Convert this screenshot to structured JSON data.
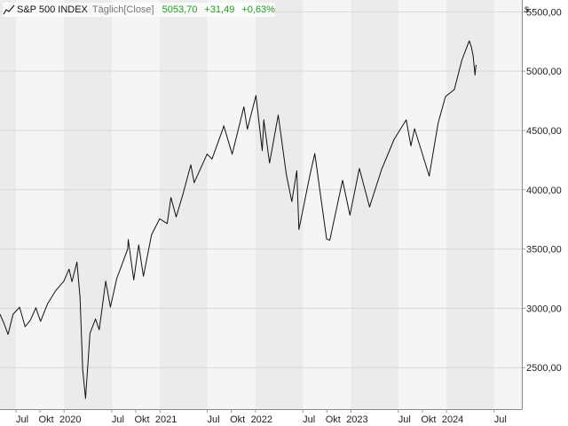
{
  "legend": {
    "name": "S&P 500 INDEX",
    "frequency": "Täglich",
    "mode": "[Close]",
    "last": "5053,70",
    "change": "+31,49",
    "change_pct": "+0,63%",
    "change_color": "#1e9e1e"
  },
  "currency": "$",
  "colors": {
    "line": "#111111",
    "band_dark": "#ebebeb",
    "band_light": "#f5f5f5",
    "grid": "#d8d8d8",
    "axis_text": "#222222"
  },
  "chart_data": {
    "type": "line",
    "title": "S&P 500 INDEX",
    "ylabel": "$",
    "xlim": [
      "2019-05-01",
      "2024-10-15"
    ],
    "ylim": [
      2150,
      5600
    ],
    "y_ticks": [
      2500,
      3000,
      3500,
      4000,
      4500,
      5000,
      5500
    ],
    "y_tick_labels": [
      "2500,00",
      "3000,00",
      "3500,00",
      "4000,00",
      "4500,00",
      "5000,00",
      "5500,00"
    ],
    "x_ticks": [
      {
        "date": "2019-07-01",
        "label": "Jul"
      },
      {
        "date": "2019-10-01",
        "label": "Okt"
      },
      {
        "date": "2020-01-01",
        "label": "2020"
      },
      {
        "date": "2020-07-01",
        "label": "Jul"
      },
      {
        "date": "2020-10-01",
        "label": "Okt"
      },
      {
        "date": "2021-01-01",
        "label": "2021"
      },
      {
        "date": "2021-07-01",
        "label": "Jul"
      },
      {
        "date": "2021-10-01",
        "label": "Okt"
      },
      {
        "date": "2022-01-01",
        "label": "2022"
      },
      {
        "date": "2022-07-01",
        "label": "Jul"
      },
      {
        "date": "2022-10-01",
        "label": "Okt"
      },
      {
        "date": "2023-01-01",
        "label": "2023"
      },
      {
        "date": "2023-07-01",
        "label": "Jul"
      },
      {
        "date": "2023-10-01",
        "label": "Okt"
      },
      {
        "date": "2024-01-01",
        "label": "2024"
      },
      {
        "date": "2024-07-01",
        "label": "Jul"
      }
    ],
    "grid": true,
    "series": [
      {
        "points": [
          [
            "2019-05-01",
            2950
          ],
          [
            "2019-05-15",
            2880
          ],
          [
            "2019-06-01",
            2780
          ],
          [
            "2019-06-20",
            2950
          ],
          [
            "2019-07-15",
            3010
          ],
          [
            "2019-08-05",
            2845
          ],
          [
            "2019-08-25",
            2900
          ],
          [
            "2019-09-15",
            3005
          ],
          [
            "2019-10-03",
            2890
          ],
          [
            "2019-10-30",
            3040
          ],
          [
            "2019-11-30",
            3150
          ],
          [
            "2019-12-31",
            3230
          ],
          [
            "2020-01-20",
            3330
          ],
          [
            "2020-01-31",
            3225
          ],
          [
            "2020-02-19",
            3390
          ],
          [
            "2020-03-02",
            3090
          ],
          [
            "2020-03-12",
            2480
          ],
          [
            "2020-03-23",
            2240
          ],
          [
            "2020-04-09",
            2790
          ],
          [
            "2020-04-30",
            2910
          ],
          [
            "2020-05-14",
            2820
          ],
          [
            "2020-06-08",
            3230
          ],
          [
            "2020-06-26",
            3010
          ],
          [
            "2020-07-20",
            3250
          ],
          [
            "2020-08-31",
            3500
          ],
          [
            "2020-09-02",
            3580
          ],
          [
            "2020-09-23",
            3240
          ],
          [
            "2020-10-12",
            3535
          ],
          [
            "2020-10-30",
            3270
          ],
          [
            "2020-11-30",
            3620
          ],
          [
            "2020-12-31",
            3755
          ],
          [
            "2021-01-29",
            3715
          ],
          [
            "2021-02-12",
            3935
          ],
          [
            "2021-03-04",
            3770
          ],
          [
            "2021-03-31",
            3970
          ],
          [
            "2021-04-29",
            4210
          ],
          [
            "2021-05-12",
            4060
          ],
          [
            "2021-06-30",
            4300
          ],
          [
            "2021-07-19",
            4260
          ],
          [
            "2021-08-31",
            4520
          ],
          [
            "2021-09-02",
            4540
          ],
          [
            "2021-10-04",
            4300
          ],
          [
            "2021-11-18",
            4700
          ],
          [
            "2021-12-01",
            4510
          ],
          [
            "2022-01-03",
            4795
          ],
          [
            "2022-01-27",
            4330
          ],
          [
            "2022-02-02",
            4590
          ],
          [
            "2022-02-24",
            4225
          ],
          [
            "2022-03-29",
            4630
          ],
          [
            "2022-04-29",
            4130
          ],
          [
            "2022-05-20",
            3900
          ],
          [
            "2022-06-08",
            4160
          ],
          [
            "2022-06-16",
            3665
          ],
          [
            "2022-07-29",
            4130
          ],
          [
            "2022-08-16",
            4305
          ],
          [
            "2022-09-30",
            3585
          ],
          [
            "2022-10-12",
            3575
          ],
          [
            "2022-11-30",
            4080
          ],
          [
            "2022-12-28",
            3785
          ],
          [
            "2023-02-02",
            4180
          ],
          [
            "2023-03-13",
            3855
          ],
          [
            "2023-04-28",
            4170
          ],
          [
            "2023-06-15",
            4425
          ],
          [
            "2023-07-31",
            4590
          ],
          [
            "2023-08-18",
            4370
          ],
          [
            "2023-09-01",
            4515
          ],
          [
            "2023-10-27",
            4115
          ],
          [
            "2023-11-30",
            4560
          ],
          [
            "2023-12-28",
            4785
          ],
          [
            "2024-01-31",
            4845
          ],
          [
            "2024-02-29",
            5095
          ],
          [
            "2024-03-28",
            5255
          ],
          [
            "2024-04-05",
            5205
          ],
          [
            "2024-04-12",
            5125
          ],
          [
            "2024-04-19",
            4967
          ],
          [
            "2024-04-23",
            5053.7
          ]
        ]
      }
    ]
  }
}
